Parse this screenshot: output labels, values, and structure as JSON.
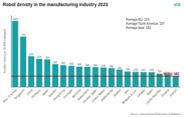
{
  "chart_data": {
    "type": "bar",
    "title": "Robot density in the manufacturing industry 2023",
    "y_label": "Installed robots per 10,000 employees",
    "categories": [
      "Rep. of Korea",
      "Singapore",
      "China",
      "Germany",
      "Japan",
      "Sweden",
      "Hong Kong",
      "Denmark",
      "Slovenia",
      "Switzerland",
      "Chinese Taipei",
      "United States",
      "Netherlands",
      "Austria",
      "Italy",
      "Belgium & Lux.",
      "Canada",
      "Spain",
      "Czech Republic",
      "Finland",
      "France"
    ],
    "values": [
      1012,
      770,
      470,
      429,
      419,
      347,
      332,
      322,
      309,
      306,
      302,
      295,
      285,
      264,
      234,
      228,
      225,
      224,
      201,
      190,
      163
    ],
    "color": "#1a9fa6",
    "ylim": [
      0,
      1100
    ],
    "data_labels": true,
    "tick_labels": "x",
    "annotations": [
      "Average EU: 219",
      "Average North America: 197",
      "Average Asia: 182"
    ],
    "reference_line": {
      "value": 162,
      "label": "World: 162",
      "color": "#8b1a1a"
    },
    "source": "Source: International Federation of Robotics",
    "logo": "IFR"
  }
}
